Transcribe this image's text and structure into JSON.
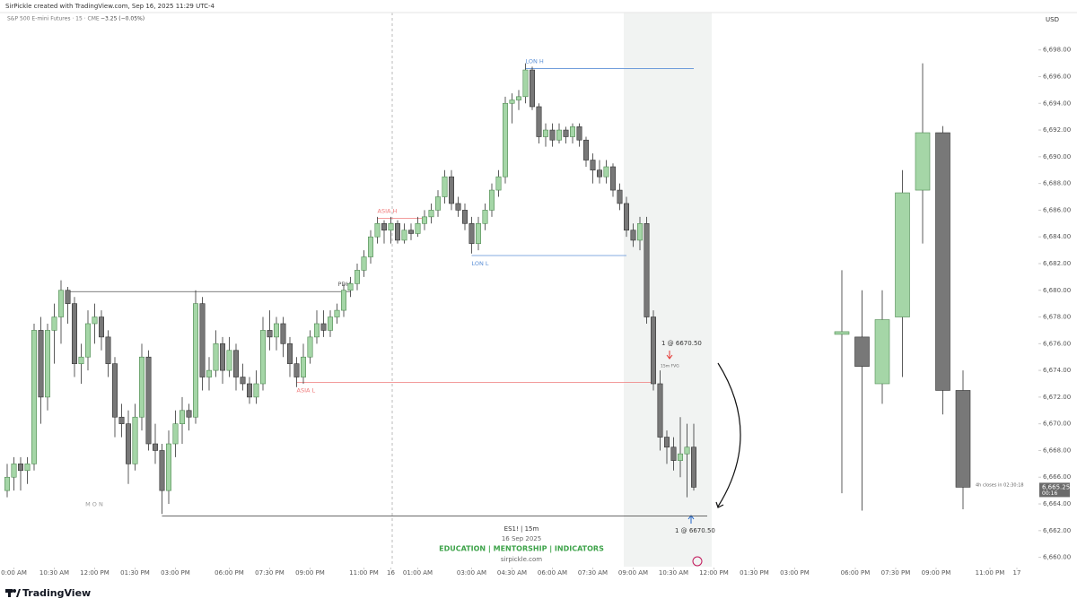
{
  "chart_data": {
    "type": "candlestick",
    "header": {
      "credit": "SirPickle created with TradingView.com, Sep 16, 2025 11:29 UTC-4",
      "symbol": "S&P 500 E-mini Futures · 15 · CME",
      "change": "−3.25 (−0.05%)",
      "currency": "USD"
    },
    "xlim": [
      -1,
      153
    ],
    "ylim": [
      6659.1,
      6700.8
    ],
    "yticks": [
      {
        "value": 6660,
        "label": "6,660.00"
      },
      {
        "value": 6662,
        "label": "6,662.00"
      },
      {
        "value": 6664,
        "label": "6,664.00"
      },
      {
        "value": 6666,
        "label": "6,666.00"
      },
      {
        "value": 6668,
        "label": "6,668.00"
      },
      {
        "value": 6670,
        "label": "6,670.00"
      },
      {
        "value": 6672,
        "label": "6,672.00"
      },
      {
        "value": 6674,
        "label": "6,674.00"
      },
      {
        "value": 6676,
        "label": "6,676.00"
      },
      {
        "value": 6678,
        "label": "6,678.00"
      },
      {
        "value": 6680,
        "label": "6,680.00"
      },
      {
        "value": 6682,
        "label": "6,682.00"
      },
      {
        "value": 6684,
        "label": "6,684.00"
      },
      {
        "value": 6686,
        "label": "6,686.00"
      },
      {
        "value": 6688,
        "label": "6,688.00"
      },
      {
        "value": 6690,
        "label": "6,690.00"
      },
      {
        "value": 6692,
        "label": "6,692.00"
      },
      {
        "value": 6694,
        "label": "6,694.00"
      },
      {
        "value": 6696,
        "label": "6,696.00"
      },
      {
        "value": 6698,
        "label": "6,698.00"
      }
    ],
    "xticks": [
      {
        "value": 1,
        "label": "0:00 AM"
      },
      {
        "value": 7,
        "label": "10:30 AM"
      },
      {
        "value": 13,
        "label": "12:00 PM"
      },
      {
        "value": 19,
        "label": "01:30 PM"
      },
      {
        "value": 25,
        "label": "03:00 PM"
      },
      {
        "value": 33,
        "label": "06:00 PM"
      },
      {
        "value": 39,
        "label": "07:30 PM"
      },
      {
        "value": 45,
        "label": "09:00 PM"
      },
      {
        "value": 53,
        "label": "11:00 PM"
      },
      {
        "value": 57,
        "label": "16"
      },
      {
        "value": 61,
        "label": "01:00 AM"
      },
      {
        "value": 69,
        "label": "03:00 AM"
      },
      {
        "value": 75,
        "label": "04:30 AM"
      },
      {
        "value": 81,
        "label": "06:00 AM"
      },
      {
        "value": 87,
        "label": "07:30 AM"
      },
      {
        "value": 93,
        "label": "09:00 AM"
      },
      {
        "value": 99,
        "label": "10:30 AM"
      },
      {
        "value": 105,
        "label": "12:00 PM"
      },
      {
        "value": 111,
        "label": "01:30 PM"
      },
      {
        "value": 117,
        "label": "03:00 PM"
      },
      {
        "value": 126,
        "label": "06:00 PM"
      },
      {
        "value": 132,
        "label": "07:30 PM"
      },
      {
        "value": 138,
        "label": "09:00 PM"
      },
      {
        "value": 146,
        "label": "11:00 PM"
      },
      {
        "value": 150,
        "label": "17"
      }
    ],
    "up_color": "#a5d6a7",
    "down_color": "#787878",
    "candles": [
      [
        6665.0,
        6667.0,
        6664.5,
        6666.0
      ],
      [
        6666.0,
        6667.5,
        6665.0,
        6667.0
      ],
      [
        6667.0,
        6667.5,
        6665.0,
        6666.5
      ],
      [
        6666.5,
        6667.5,
        6665.5,
        6667.0
      ],
      [
        6667.0,
        6677.5,
        6666.5,
        6677.0
      ],
      [
        6677.0,
        6678.0,
        6670.0,
        6672.0
      ],
      [
        6672.0,
        6677.5,
        6671.0,
        6677.0
      ],
      [
        6677.0,
        6679.0,
        6674.5,
        6678.0
      ],
      [
        6678.0,
        6680.75,
        6676.0,
        6680.0
      ],
      [
        6680.0,
        6680.25,
        6677.5,
        6679.0
      ],
      [
        6679.0,
        6679.5,
        6673.5,
        6674.5
      ],
      [
        6674.5,
        6676.0,
        6673.0,
        6675.0
      ],
      [
        6675.0,
        6678.5,
        6674.0,
        6677.5
      ],
      [
        6677.5,
        6679.0,
        6676.0,
        6678.0
      ],
      [
        6678.0,
        6678.5,
        6675.5,
        6676.5
      ],
      [
        6676.5,
        6677.0,
        6673.5,
        6674.5
      ],
      [
        6674.5,
        6675.0,
        6669.0,
        6670.5
      ],
      [
        6670.5,
        6671.5,
        6669.0,
        6670.0
      ],
      [
        6670.0,
        6671.0,
        6665.5,
        6667.0
      ],
      [
        6667.0,
        6671.5,
        6666.5,
        6670.5
      ],
      [
        6670.5,
        6676.0,
        6669.5,
        6675.0
      ],
      [
        6675.0,
        6675.5,
        6668.0,
        6668.5
      ],
      [
        6668.5,
        6670.0,
        6667.0,
        6668.0
      ],
      [
        6668.0,
        6668.5,
        6663.25,
        6665.0
      ],
      [
        6665.0,
        6669.5,
        6664.0,
        6668.5
      ],
      [
        6668.5,
        6671.0,
        6667.5,
        6670.0
      ],
      [
        6670.0,
        6672.0,
        6668.5,
        6671.0
      ],
      [
        6671.0,
        6671.5,
        6669.5,
        6670.5
      ],
      [
        6670.5,
        6680.0,
        6670.0,
        6679.0
      ],
      [
        6679.0,
        6679.5,
        6672.5,
        6673.5
      ],
      [
        6673.5,
        6675.0,
        6672.5,
        6674.0
      ],
      [
        6674.0,
        6677.0,
        6673.5,
        6676.0
      ],
      [
        6676.0,
        6676.5,
        6673.0,
        6674.0
      ],
      [
        6674.0,
        6676.5,
        6673.5,
        6675.5
      ],
      [
        6675.5,
        6676.0,
        6672.5,
        6673.5
      ],
      [
        6673.5,
        6674.5,
        6672.5,
        6673.0
      ],
      [
        6673.0,
        6673.5,
        6671.5,
        6672.0
      ],
      [
        6672.0,
        6674.0,
        6671.5,
        6673.0
      ],
      [
        6673.0,
        6678.0,
        6672.5,
        6677.0
      ],
      [
        6677.0,
        6678.5,
        6675.5,
        6676.5
      ],
      [
        6676.5,
        6678.0,
        6675.5,
        6677.5
      ],
      [
        6677.5,
        6678.0,
        6675.0,
        6676.0
      ],
      [
        6676.0,
        6676.5,
        6673.5,
        6674.5
      ],
      [
        6674.5,
        6675.0,
        6672.75,
        6673.5
      ],
      [
        6673.5,
        6676.0,
        6673.0,
        6675.0
      ],
      [
        6675.0,
        6677.0,
        6674.5,
        6676.5
      ],
      [
        6676.5,
        6678.5,
        6676.0,
        6677.5
      ],
      [
        6677.5,
        6678.5,
        6676.5,
        6677.0
      ],
      [
        6677.0,
        6678.5,
        6676.5,
        6678.0
      ],
      [
        6678.0,
        6679.0,
        6677.5,
        6678.5
      ],
      [
        6678.5,
        6680.5,
        6678.0,
        6680.0
      ],
      [
        6680.0,
        6681.0,
        6679.5,
        6680.5
      ],
      [
        6680.5,
        6682.0,
        6680.0,
        6681.5
      ],
      [
        6681.5,
        6683.0,
        6681.0,
        6682.5
      ],
      [
        6682.5,
        6684.5,
        6682.0,
        6684.0
      ],
      [
        6684.0,
        6685.5,
        6683.5,
        6685.0
      ],
      [
        6685.0,
        6685.25,
        6683.5,
        6684.5
      ],
      [
        6684.5,
        6685.5,
        6683.5,
        6685.0
      ],
      [
        6685.0,
        6685.25,
        6683.5,
        6683.75
      ],
      [
        6683.75,
        6685.0,
        6683.5,
        6684.5
      ],
      [
        6684.5,
        6685.0,
        6683.75,
        6684.25
      ],
      [
        6684.25,
        6685.5,
        6684.0,
        6685.0
      ],
      [
        6685.0,
        6686.0,
        6684.5,
        6685.5
      ],
      [
        6685.5,
        6686.5,
        6685.0,
        6686.0
      ],
      [
        6686.0,
        6687.5,
        6685.5,
        6687.0
      ],
      [
        6687.0,
        6689.0,
        6686.5,
        6688.5
      ],
      [
        6688.5,
        6689.0,
        6686.0,
        6686.5
      ],
      [
        6686.5,
        6687.0,
        6685.5,
        6686.0
      ],
      [
        6686.0,
        6686.5,
        6684.5,
        6685.0
      ],
      [
        6685.0,
        6685.5,
        6682.75,
        6683.5
      ],
      [
        6683.5,
        6685.5,
        6683.0,
        6685.0
      ],
      [
        6685.0,
        6686.5,
        6684.5,
        6686.0
      ],
      [
        6686.0,
        6688.0,
        6685.5,
        6687.5
      ],
      [
        6687.5,
        6689.0,
        6687.0,
        6688.5
      ],
      [
        6688.5,
        6694.5,
        6688.0,
        6694.0
      ],
      [
        6694.0,
        6694.75,
        6692.5,
        6694.25
      ],
      [
        6694.25,
        6695.0,
        6693.5,
        6694.5
      ],
      [
        6694.5,
        6697.0,
        6694.0,
        6696.5
      ],
      [
        6696.5,
        6696.75,
        6693.5,
        6693.75
      ],
      [
        6693.75,
        6694.0,
        6691.0,
        6691.5
      ],
      [
        6691.5,
        6692.5,
        6690.75,
        6692.0
      ],
      [
        6692.0,
        6692.5,
        6690.75,
        6691.25
      ],
      [
        6691.25,
        6692.5,
        6691.0,
        6692.0
      ],
      [
        6692.0,
        6692.25,
        6691.0,
        6691.5
      ],
      [
        6691.5,
        6692.5,
        6691.0,
        6692.25
      ],
      [
        6692.25,
        6692.5,
        6690.75,
        6691.25
      ],
      [
        6691.25,
        6691.5,
        6689.25,
        6689.75
      ],
      [
        6689.75,
        6690.25,
        6688.0,
        6689.0
      ],
      [
        6689.0,
        6689.75,
        6688.0,
        6688.5
      ],
      [
        6688.5,
        6689.75,
        6688.0,
        6689.25
      ],
      [
        6689.25,
        6689.5,
        6687.0,
        6687.5
      ],
      [
        6687.5,
        6688.0,
        6686.0,
        6686.5
      ],
      [
        6686.5,
        6687.0,
        6684.0,
        6684.5
      ],
      [
        6684.5,
        6685.0,
        6683.25,
        6683.75
      ],
      [
        6683.75,
        6685.5,
        6683.0,
        6685.0
      ],
      [
        6685.0,
        6685.5,
        6677.5,
        6678.0
      ],
      [
        6678.0,
        6678.5,
        6672.5,
        6673.0
      ],
      [
        6673.0,
        6674.0,
        6668.0,
        6669.0
      ],
      [
        6669.0,
        6669.5,
        6667.0,
        6668.25
      ],
      [
        6668.25,
        6669.0,
        6666.5,
        6667.25
      ],
      [
        6667.25,
        6670.5,
        6666.0,
        6667.75
      ],
      [
        6667.75,
        6670.0,
        6664.5,
        6668.25
      ],
      [
        6668.25,
        6670.0,
        6665.0,
        6665.25
      ]
    ],
    "htf": {
      "x": [
        124,
        127,
        130,
        133,
        136,
        139,
        142
      ],
      "candles": [
        [
          6676.7,
          6681.5,
          6664.8,
          6676.9
        ],
        [
          6676.5,
          6680.0,
          6663.5,
          6674.3
        ],
        [
          6673.0,
          6680.0,
          6671.5,
          6677.8
        ],
        [
          6678.0,
          6689.0,
          6673.5,
          6687.3
        ],
        [
          6687.5,
          6697.0,
          6683.5,
          6691.8
        ],
        [
          6691.8,
          6692.3,
          6670.7,
          6672.5
        ],
        [
          6672.5,
          6674.0,
          6663.6,
          6665.25
        ]
      ],
      "note": "4h closes in 02:30:18"
    },
    "levels": [
      {
        "label": "PDH",
        "value": 6679.9,
        "span": [
          9,
          51
        ],
        "color": "#555555"
      },
      {
        "label": "ASIA H",
        "value": 6685.4,
        "span": [
          55,
          62
        ],
        "color": "#ef7a7a"
      },
      {
        "label": "ASIA L",
        "value": 6673.1,
        "span": [
          43,
          96
        ],
        "color": "#ef7a7a"
      },
      {
        "label": "LON H",
        "value": 6696.6,
        "span": [
          77,
          102
        ],
        "color": "#5b8fd6"
      },
      {
        "label": "LON L",
        "value": 6682.6,
        "span": [
          69,
          92
        ],
        "color": "#5b8fd6"
      },
      {
        "label": "M O N",
        "value": 6663.1,
        "span": [
          23,
          104
        ],
        "color": "#555555"
      }
    ],
    "trades": [
      "1 @ 6670.50",
      "1 @ 6670.50"
    ],
    "fvg": "15m FVG",
    "last_price": {
      "label": "6,665.25",
      "value": 6665.25,
      "countdown": "00:16"
    },
    "watermark": [
      "ES1!  |  15m",
      "16 Sep 2025",
      "EDUCATION  |  MENTORSHIP  |  INDICATORS",
      "sirpickle.com"
    ],
    "brand": "TradingView"
  }
}
